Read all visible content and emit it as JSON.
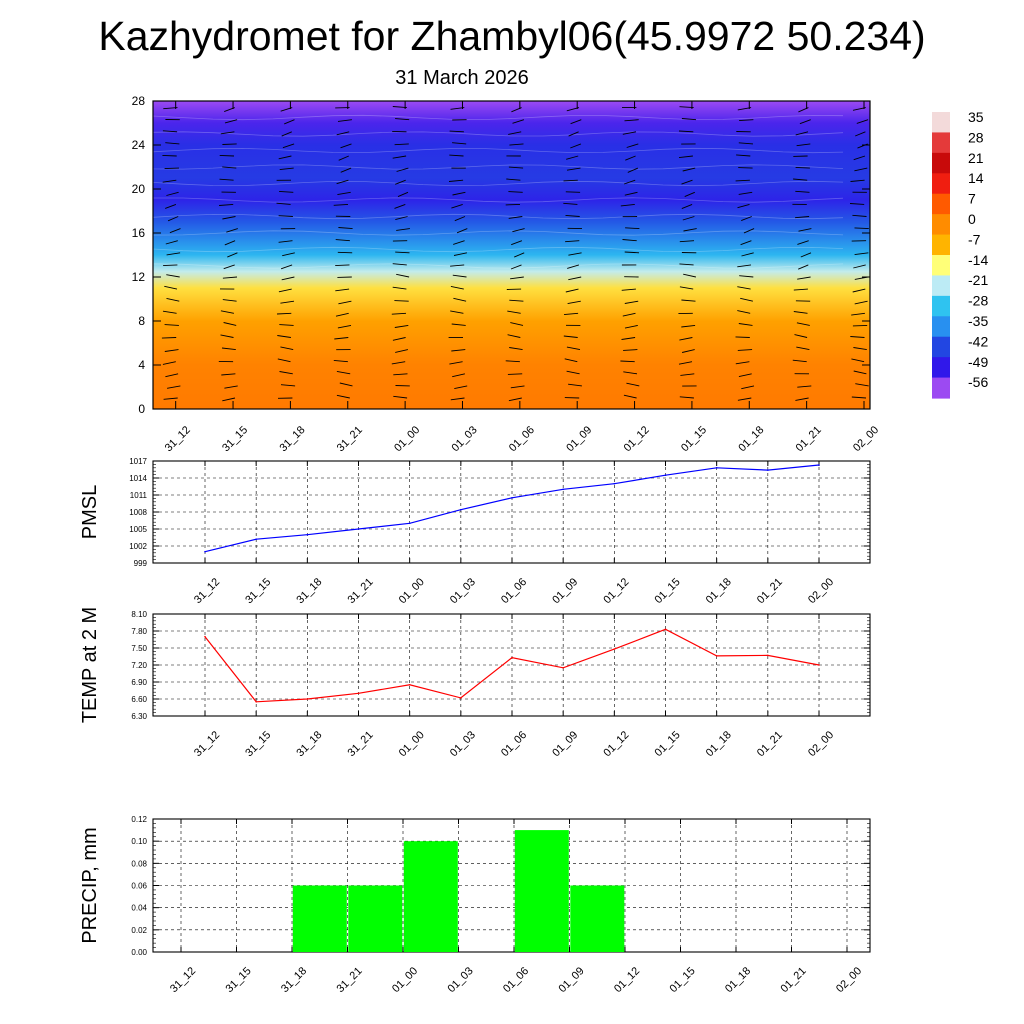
{
  "title": "Kazhydromet for Zhambyl06(45.9972 50.234)",
  "date": "31 March 2026",
  "times": [
    "31_12",
    "31_15",
    "31_18",
    "31_21",
    "01_00",
    "01_03",
    "01_06",
    "01_09",
    "01_12",
    "01_15",
    "01_18",
    "01_21",
    "02_00"
  ],
  "chart_data": [
    {
      "type": "heatmap",
      "name": "vertical-profile",
      "title": "",
      "xlabel": "",
      "ylabel": "",
      "x": [
        "31_12",
        "31_15",
        "31_18",
        "31_21",
        "01_00",
        "01_03",
        "01_06",
        "01_09",
        "01_12",
        "01_15",
        "01_18",
        "01_21",
        "02_00"
      ],
      "y_ticks": [
        0,
        4,
        8,
        12,
        16,
        20,
        24,
        28
      ],
      "ylim": [
        0,
        28
      ],
      "colorbar_ticks": [
        "35",
        "28",
        "21",
        "14",
        "7",
        "0",
        "-7",
        "-14",
        "-21",
        "-28",
        "-35",
        "-42",
        "-49",
        "-56"
      ],
      "colorbar_colors": [
        "#f3dada",
        "#e43a3a",
        "#c80a0a",
        "#f01e10",
        "#ff5a00",
        "#ff8c00",
        "#ffb400",
        "#ffff78",
        "#bcebf5",
        "#2fc3f0",
        "#2890f0",
        "#2246e2",
        "#3018ea",
        "#9c4af2"
      ],
      "level_temperature": [
        {
          "level": 0,
          "t": 5
        },
        {
          "level": 4,
          "t": 4
        },
        {
          "level": 8,
          "t": 0
        },
        {
          "level": 11,
          "t": -7
        },
        {
          "level": 12.5,
          "t": -20
        },
        {
          "level": 14,
          "t": -30
        },
        {
          "level": 17,
          "t": -42
        },
        {
          "level": 19,
          "t": -50
        },
        {
          "level": 21,
          "t": -46
        },
        {
          "level": 24,
          "t": -48
        },
        {
          "level": 26,
          "t": -54
        },
        {
          "level": 28,
          "t": -60
        }
      ]
    },
    {
      "type": "line",
      "name": "pmsl",
      "ylabel": "PMSL",
      "categories": [
        "31_12",
        "31_15",
        "31_18",
        "31_21",
        "01_00",
        "01_03",
        "01_06",
        "01_09",
        "01_12",
        "01_15",
        "01_18",
        "01_21",
        "02_00"
      ],
      "values": [
        1001,
        1003.2,
        1004,
        1005,
        1006,
        1008.4,
        1010.5,
        1012,
        1013,
        1014.5,
        1015.8,
        1015.4,
        1016.3
      ],
      "ylim": [
        999,
        1017
      ],
      "yticks": [
        "1017",
        "1014",
        "1011",
        "1008",
        "1005",
        "1002",
        "999"
      ],
      "color": "#0000ff"
    },
    {
      "type": "line",
      "name": "temp-2m",
      "ylabel": "TEMP at 2 M",
      "categories": [
        "31_12",
        "31_15",
        "31_18",
        "31_21",
        "01_00",
        "01_03",
        "01_06",
        "01_09",
        "01_12",
        "01_15",
        "01_18",
        "01_21",
        "02_00"
      ],
      "values": [
        7.7,
        6.55,
        6.6,
        6.7,
        6.85,
        6.62,
        7.33,
        7.15,
        7.48,
        7.83,
        7.36,
        7.37,
        7.2
      ],
      "ylim": [
        6.3,
        8.1
      ],
      "yticks": [
        "8.10",
        "7.80",
        "7.50",
        "7.20",
        "6.90",
        "6.60",
        "6.30"
      ],
      "color": "#ff0000"
    },
    {
      "type": "bar",
      "name": "precip",
      "ylabel": "PRECIP, mm",
      "categories": [
        "31_12",
        "31_15",
        "31_18",
        "31_21",
        "01_00",
        "01_03",
        "01_06",
        "01_09",
        "01_12",
        "01_15",
        "01_18",
        "01_21",
        "02_00"
      ],
      "values": [
        0,
        0,
        0.06,
        0.06,
        0.1,
        0,
        0.11,
        0.06,
        0,
        0,
        0,
        0,
        0
      ],
      "ylim": [
        0,
        0.12
      ],
      "yticks": [
        "0.12",
        "0.10",
        "0.08",
        "0.06",
        "0.04",
        "0.02",
        "0.00"
      ],
      "color": "#00ff00"
    }
  ]
}
